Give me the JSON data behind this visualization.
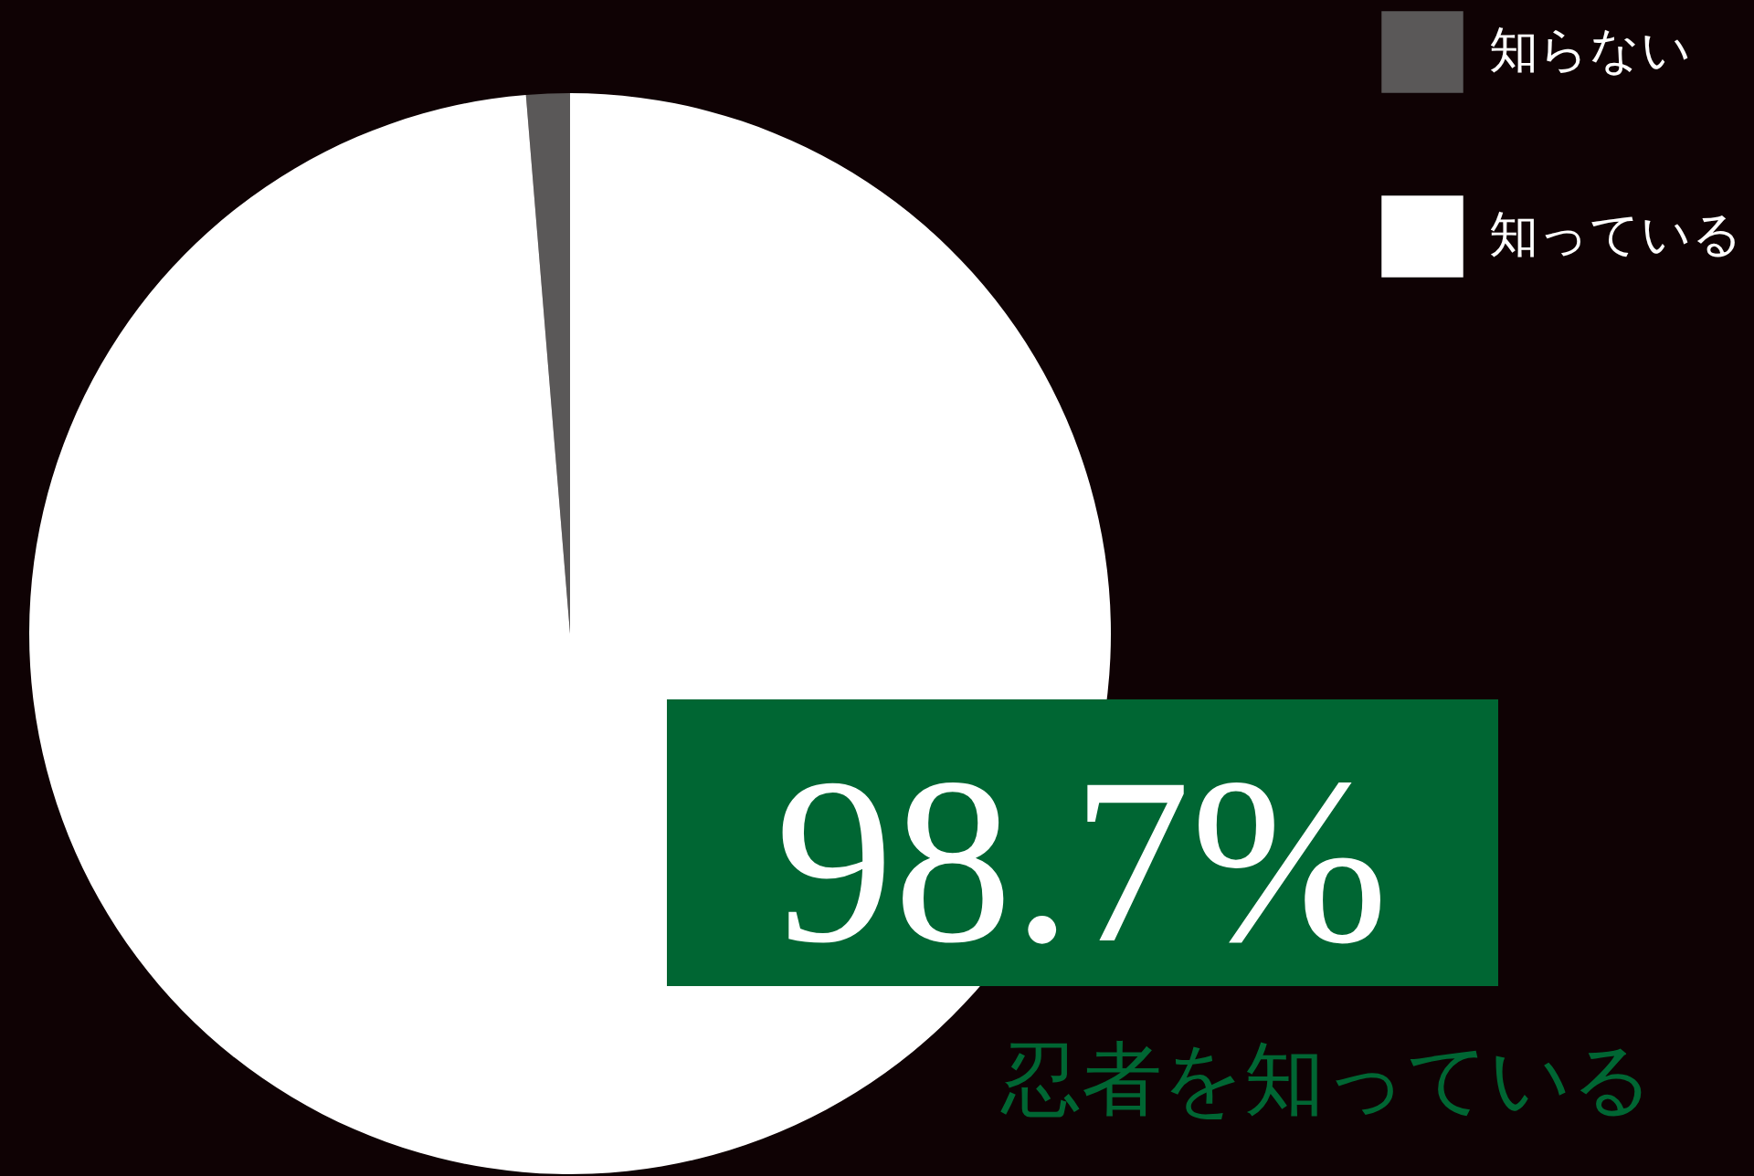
{
  "chart_data": {
    "type": "pie",
    "categories": [
      "知らない",
      "知っている"
    ],
    "values": [
      1.3,
      98.7
    ],
    "colors": [
      "#5a5858",
      "#ffffff"
    ],
    "legend": "top right",
    "annotations": [
      "98.7%",
      "忍者を知っている"
    ]
  }
}
